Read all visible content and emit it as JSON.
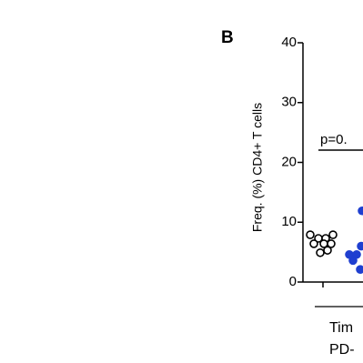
{
  "chart_data": {
    "type": "strip",
    "panel_label": "B",
    "y_label": "Freq. (%) CD4+ T cells",
    "annotation": "p=0.",
    "x_labels": [
      "Tim",
      "PD-"
    ],
    "ylim": [
      0,
      40
    ],
    "yticks": [
      0,
      10,
      20,
      30,
      40
    ],
    "series": [
      {
        "color": "#000000",
        "filled": false,
        "values": [
          7.9,
          7.3,
          7.3,
          7.9,
          6.4,
          6.4,
          6.4,
          4.9,
          5.3
        ]
      },
      {
        "color": "#1f3fd0",
        "filled": true,
        "values": [
          4.6,
          4.6,
          11.9,
          2.1,
          6.0,
          3.6
        ]
      }
    ]
  }
}
